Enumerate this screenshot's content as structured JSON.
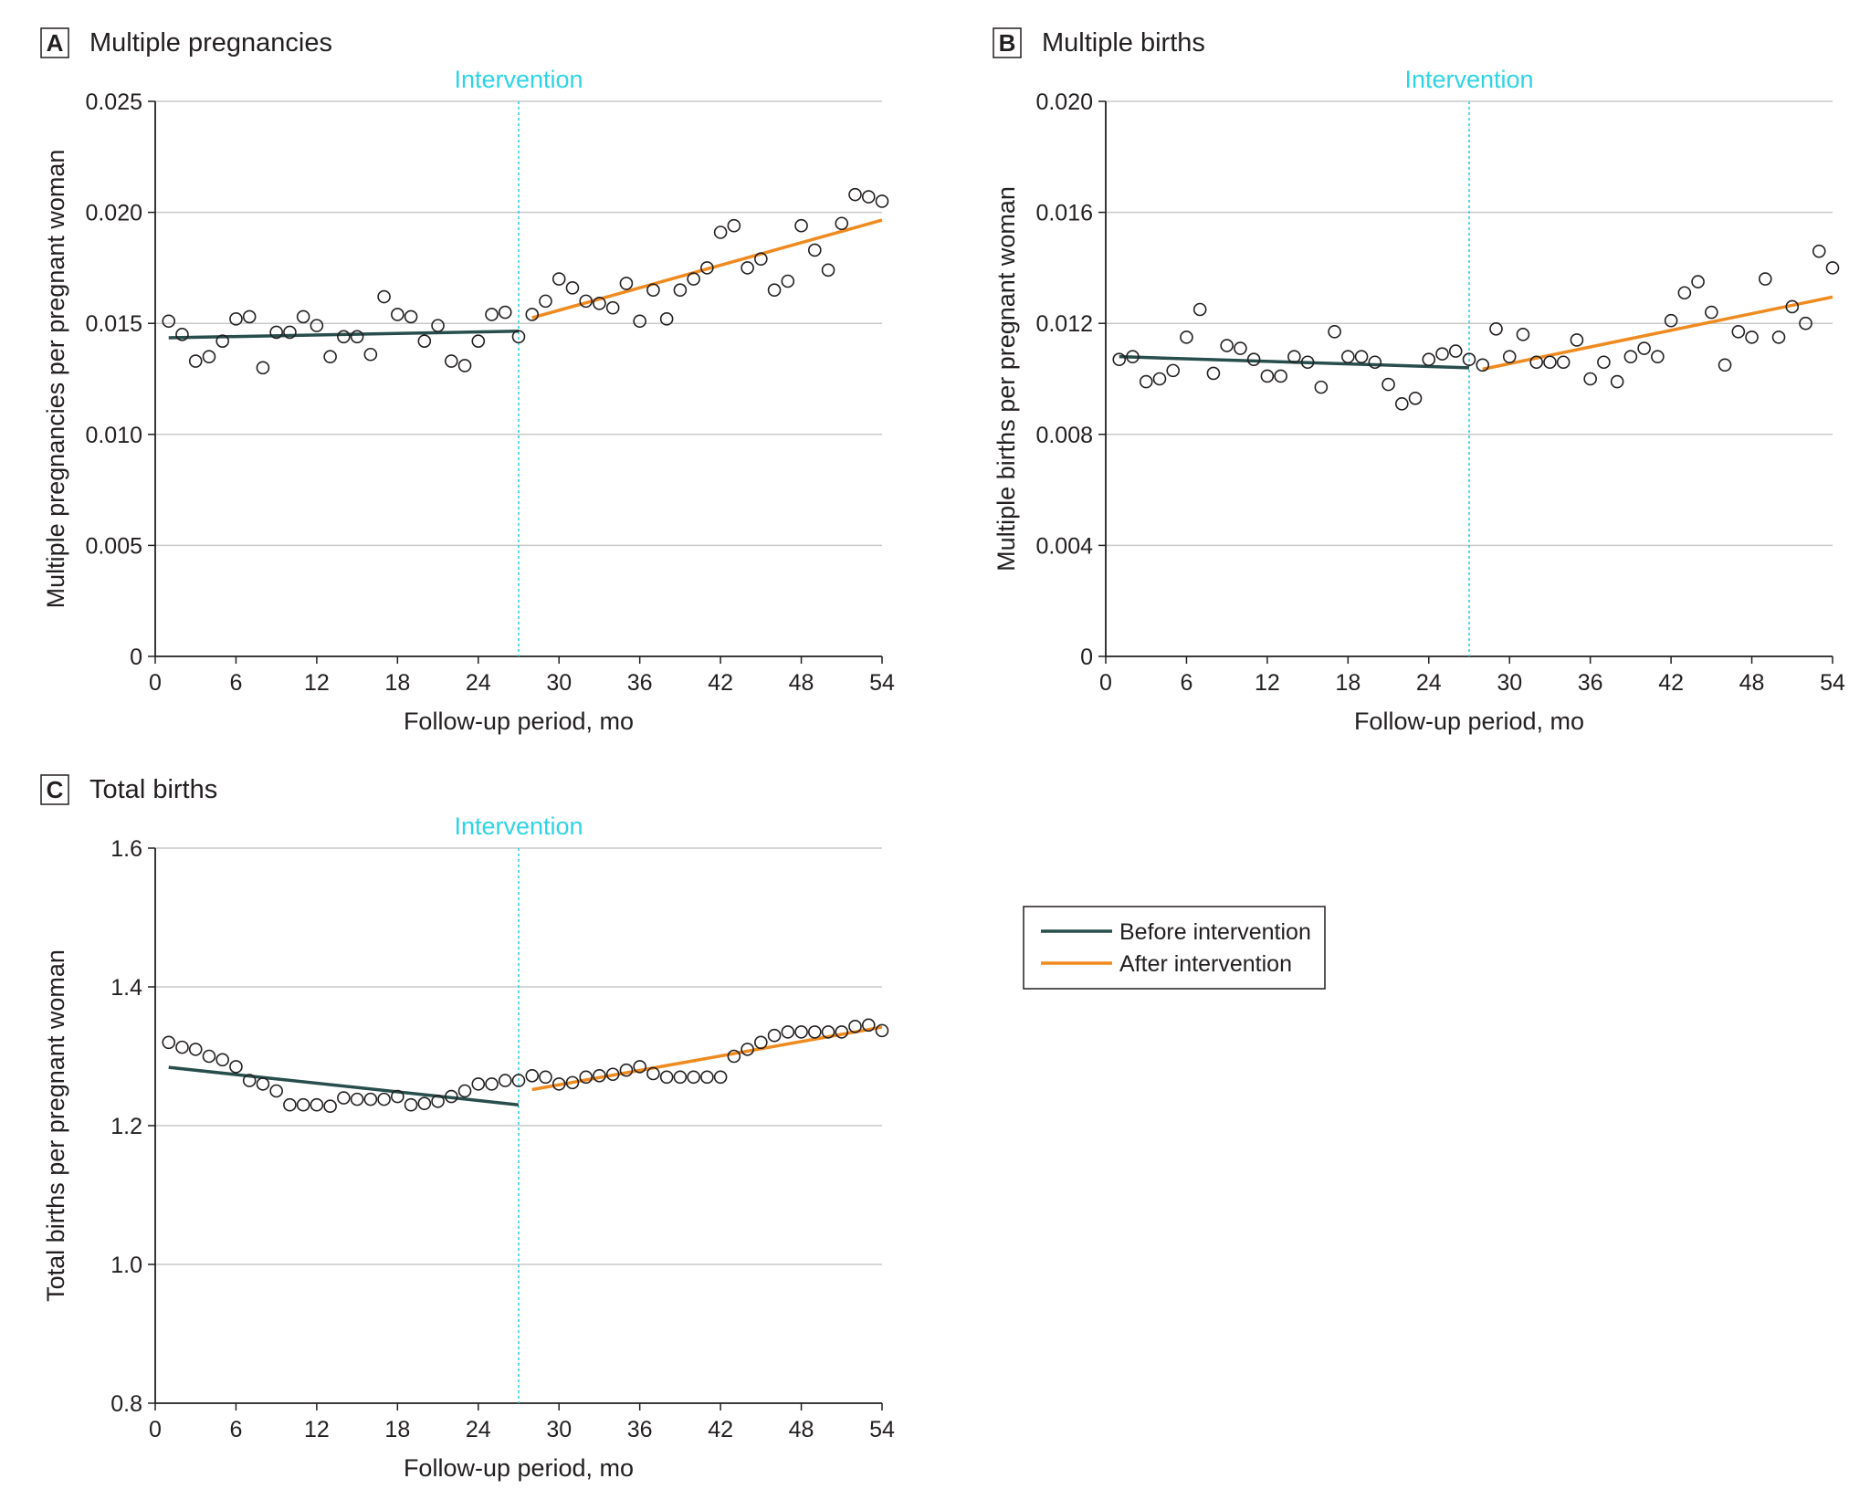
{
  "colors": {
    "before": "#274e4c",
    "after": "#ef8a1f",
    "intervention": "#2ed3e6",
    "grid": "#c8c8c8",
    "axis": "#231f20",
    "marker_stroke": "#231f20"
  },
  "legend": {
    "before_label": "Before intervention",
    "after_label": "After intervention"
  },
  "chart_data": [
    {
      "panel": "A",
      "title": "Multiple pregnancies",
      "type": "scatter",
      "xlabel": "Follow-up period, mo",
      "ylabel": "Multiple pregnancies per pregnant woman",
      "xlim": [
        0,
        54
      ],
      "ylim": [
        0,
        0.025
      ],
      "xticks": [
        0,
        6,
        12,
        18,
        24,
        30,
        36,
        42,
        48,
        54
      ],
      "yticks": [
        0,
        0.005,
        0.01,
        0.015,
        0.02,
        0.025
      ],
      "ytick_labels": [
        "0",
        "0.005",
        "0.010",
        "0.015",
        "0.020",
        "0.025"
      ],
      "intervention_x": 27,
      "intervention_label": "Intervention",
      "x": [
        1,
        2,
        3,
        4,
        5,
        6,
        7,
        8,
        9,
        10,
        11,
        12,
        13,
        14,
        15,
        16,
        17,
        18,
        19,
        20,
        21,
        22,
        23,
        24,
        25,
        26,
        27,
        28,
        29,
        30,
        31,
        32,
        33,
        34,
        35,
        36,
        37,
        38,
        39,
        40,
        41,
        42,
        43,
        44,
        45,
        46,
        47,
        48,
        49,
        50,
        51,
        52,
        53,
        54
      ],
      "values": [
        0.0151,
        0.0145,
        0.0133,
        0.0135,
        0.0142,
        0.0152,
        0.0153,
        0.013,
        0.0146,
        0.0146,
        0.0153,
        0.0149,
        0.0135,
        0.0144,
        0.0144,
        0.0136,
        0.0162,
        0.0154,
        0.0153,
        0.0142,
        0.0149,
        0.0133,
        0.0131,
        0.0142,
        0.0154,
        0.0155,
        0.0144,
        0.0154,
        0.016,
        0.017,
        0.0166,
        0.016,
        0.0159,
        0.0157,
        0.0168,
        0.0151,
        0.0165,
        0.0152,
        0.0165,
        0.017,
        0.0175,
        0.0191,
        0.0194,
        0.0175,
        0.0179,
        0.0165,
        0.0169,
        0.0194,
        0.0183,
        0.0174,
        0.0195,
        0.0208,
        0.0207,
        0.0205
      ],
      "series": [
        {
          "name": "Before intervention",
          "x": [
            1,
            27
          ],
          "values": [
            0.01435,
            0.01465
          ]
        },
        {
          "name": "After intervention",
          "x": [
            28,
            54
          ],
          "values": [
            0.01525,
            0.01965
          ]
        }
      ]
    },
    {
      "panel": "B",
      "title": "Multiple births",
      "type": "scatter",
      "xlabel": "Follow-up period, mo",
      "ylabel": "Multiple births per pregnant woman",
      "xlim": [
        0,
        54
      ],
      "ylim": [
        0,
        0.02
      ],
      "xticks": [
        0,
        6,
        12,
        18,
        24,
        30,
        36,
        42,
        48,
        54
      ],
      "yticks": [
        0,
        0.004,
        0.008,
        0.012,
        0.016,
        0.02
      ],
      "ytick_labels": [
        "0",
        "0.004",
        "0.008",
        "0.012",
        "0.016",
        "0.020"
      ],
      "intervention_x": 27,
      "intervention_label": "Intervention",
      "x": [
        1,
        2,
        3,
        4,
        5,
        6,
        7,
        8,
        9,
        10,
        11,
        12,
        13,
        14,
        15,
        16,
        17,
        18,
        19,
        20,
        21,
        22,
        23,
        24,
        25,
        26,
        27,
        28,
        29,
        30,
        31,
        32,
        33,
        34,
        35,
        36,
        37,
        38,
        39,
        40,
        41,
        42,
        43,
        44,
        45,
        46,
        47,
        48,
        49,
        50,
        51,
        52,
        53,
        54
      ],
      "values": [
        0.0107,
        0.0108,
        0.0099,
        0.01,
        0.0103,
        0.0115,
        0.0125,
        0.0102,
        0.0112,
        0.0111,
        0.0107,
        0.0101,
        0.0101,
        0.0108,
        0.0106,
        0.0097,
        0.0117,
        0.0108,
        0.0108,
        0.0106,
        0.0098,
        0.0091,
        0.0093,
        0.0107,
        0.0109,
        0.011,
        0.0107,
        0.0105,
        0.0118,
        0.0108,
        0.0116,
        0.0106,
        0.0106,
        0.0106,
        0.0114,
        0.01,
        0.0106,
        0.0099,
        0.0108,
        0.0111,
        0.0108,
        0.0121,
        0.0131,
        0.0135,
        0.0124,
        0.0105,
        0.0117,
        0.0115,
        0.0136,
        0.0115,
        0.0126,
        0.012,
        0.0146,
        0.014
      ],
      "series": [
        {
          "name": "Before intervention",
          "x": [
            1,
            27
          ],
          "values": [
            0.0108,
            0.0104
          ]
        },
        {
          "name": "After intervention",
          "x": [
            28,
            54
          ],
          "values": [
            0.01035,
            0.01295
          ]
        }
      ]
    },
    {
      "panel": "C",
      "title": "Total births",
      "type": "scatter",
      "xlabel": "Follow-up period, mo",
      "ylabel": "Total births per pregnant woman",
      "xlim": [
        0,
        54
      ],
      "ylim": [
        0.8,
        1.6
      ],
      "xticks": [
        0,
        6,
        12,
        18,
        24,
        30,
        36,
        42,
        48,
        54
      ],
      "yticks": [
        0.8,
        1.0,
        1.2,
        1.4,
        1.6
      ],
      "ytick_labels": [
        "0.8",
        "1.0",
        "1.2",
        "1.4",
        "1.6"
      ],
      "intervention_x": 27,
      "intervention_label": "Intervention",
      "x": [
        1,
        2,
        3,
        4,
        5,
        6,
        7,
        8,
        9,
        10,
        11,
        12,
        13,
        14,
        15,
        16,
        17,
        18,
        19,
        20,
        21,
        22,
        23,
        24,
        25,
        26,
        27,
        28,
        29,
        30,
        31,
        32,
        33,
        34,
        35,
        36,
        37,
        38,
        39,
        40,
        41,
        42,
        43,
        44,
        45,
        46,
        47,
        48,
        49,
        50,
        51,
        52,
        53,
        54
      ],
      "values": [
        1.32,
        1.313,
        1.31,
        1.3,
        1.295,
        1.285,
        1.265,
        1.26,
        1.25,
        1.23,
        1.23,
        1.23,
        1.228,
        1.24,
        1.238,
        1.238,
        1.238,
        1.242,
        1.23,
        1.232,
        1.235,
        1.242,
        1.25,
        1.26,
        1.26,
        1.265,
        1.265,
        1.272,
        1.27,
        1.26,
        1.262,
        1.27,
        1.272,
        1.274,
        1.28,
        1.285,
        1.275,
        1.27,
        1.27,
        1.27,
        1.27,
        1.27,
        1.3,
        1.31,
        1.32,
        1.33,
        1.335,
        1.335,
        1.335,
        1.335,
        1.335,
        1.343,
        1.345,
        1.337
      ],
      "series": [
        {
          "name": "Before intervention",
          "x": [
            1,
            27
          ],
          "values": [
            1.284,
            1.23
          ]
        },
        {
          "name": "After intervention",
          "x": [
            28,
            54
          ],
          "values": [
            1.252,
            1.342
          ]
        }
      ]
    }
  ]
}
